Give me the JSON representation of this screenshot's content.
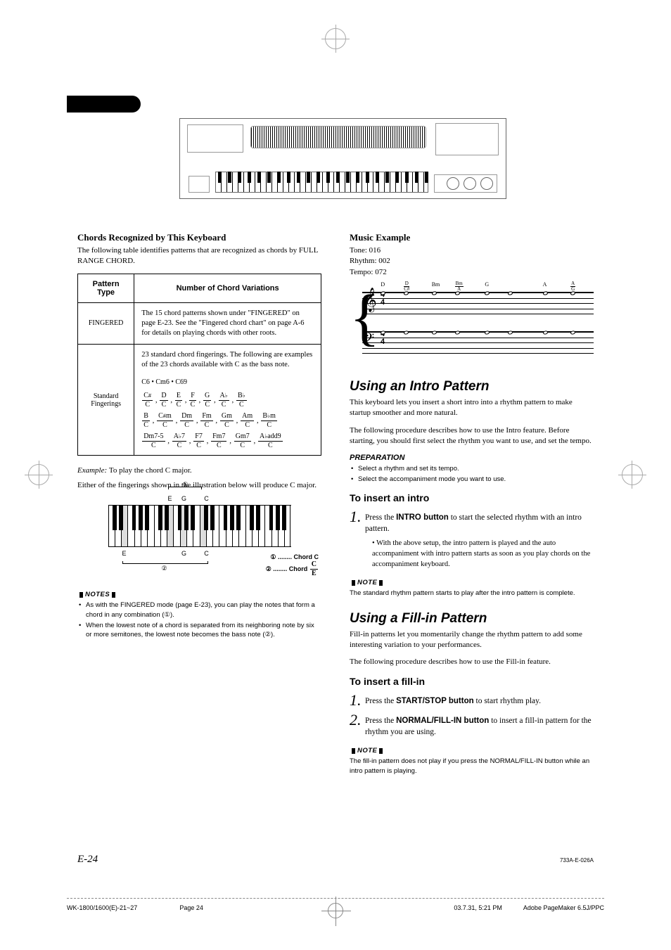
{
  "page": {
    "number": "E-24",
    "footer_code": "733A-E-026A",
    "meta_file": "WK-1800/1600(E)-21~27",
    "meta_page": "Page 24",
    "meta_date": "03.7.31, 5:21 PM",
    "meta_app": "Adobe PageMaker 6.5J/PPC"
  },
  "left": {
    "h_chords": "Chords Recognized by This Keyboard",
    "p_intro": "The following table identifies patterns that are recognized as chords by FULL RANGE CHORD.",
    "th_pattern": "Pattern Type",
    "th_variations": "Number of Chord Variations",
    "row1_pattern": "FINGERED",
    "row1_desc": "The 15 chord patterns shown under \"FINGERED\" on page E-23. See the \"Fingered chord chart\" on page A-6 for details on playing chords with other roots.",
    "row2_pattern": "Standard Fingerings",
    "row2_desc_top": "23 standard chord fingerings. The following are examples of the 23 chords available with C as the bass note.",
    "row2_line_c": "C6 • Cm6 • C69",
    "fr": {
      "r1": [
        {
          "n": "C#",
          "d": "C"
        },
        {
          "n": "D",
          "d": "C"
        },
        {
          "n": "E",
          "d": "C"
        },
        {
          "n": "F",
          "d": "C"
        },
        {
          "n": "G",
          "d": "C"
        },
        {
          "n": "A♭",
          "d": "C"
        },
        {
          "n": "B♭",
          "d": "C"
        }
      ],
      "r2": [
        {
          "n": "B",
          "d": "C"
        },
        {
          "n": "C#m",
          "d": "C"
        },
        {
          "n": "Dm",
          "d": "C"
        },
        {
          "n": "Fm",
          "d": "C"
        },
        {
          "n": "Gm",
          "d": "C"
        },
        {
          "n": "Am",
          "d": "C"
        },
        {
          "n": "B♭m",
          "d": "C"
        }
      ],
      "r3": [
        {
          "n": "Dm7-5",
          "d": "C"
        },
        {
          "n": "A♭7",
          "d": "C"
        },
        {
          "n": "F7",
          "d": "C"
        },
        {
          "n": "Fm7",
          "d": "C"
        },
        {
          "n": "Gm7",
          "d": "C"
        },
        {
          "n": "A♭add9",
          "d": "C"
        }
      ]
    },
    "example_line": "Example: To play the chord C major.",
    "either_line": "Either of the fingerings shown in the illustration below will produce C major.",
    "key_labels_top": [
      "E",
      "G",
      "C"
    ],
    "key_labels_bot": [
      "E",
      "G",
      "C"
    ],
    "legend1": "① ........ Chord C",
    "legend2_pre": "② ........ Chord ",
    "legend2_frac_n": "C",
    "legend2_frac_d": "E",
    "notes_hdr": "NOTES",
    "note1": "As with the FINGERED mode (page E-23), you can play the notes that form a chord in any combination (①).",
    "note2": "When the lowest note of a chord is separated from its neighboring note by six or more semitones, the lowest note becomes the bass note (②)."
  },
  "right": {
    "h_music": "Music Example",
    "tone": "Tone: 016",
    "rhythm": "Rhythm: 002",
    "tempo": "Tempo: 072",
    "chords": [
      "D",
      "D/C#",
      "Bm",
      "Bm/A",
      "G",
      "",
      "A",
      "A/G"
    ],
    "h_intro": "Using an Intro Pattern",
    "p_intro1": "This keyboard lets you insert a short intro into a rhythm pattern to make startup smoother and more natural.",
    "p_intro2": "The following procedure describes how to use the Intro feature. Before starting, you should first select the rhythm you want to use, and set the tempo.",
    "prep_hdr": "PREPARATION",
    "prep1": "Select a rhythm and set its tempo.",
    "prep2": "Select the accompaniment mode you want to use.",
    "h_toinsert": "To insert an intro",
    "step1_a": "Press the ",
    "step1_b": "INTRO button",
    "step1_c": " to start the selected rhythm with an intro pattern.",
    "step1_sub": "With the above setup, the intro pattern is played and the auto accompaniment with intro pattern starts as soon as you play chords on the accompaniment keyboard.",
    "note_hdr": "NOTE",
    "note_intro": "The standard rhythm pattern starts to play after the intro pattern is complete.",
    "h_fillin": "Using a Fill-in Pattern",
    "p_fill1": "Fill-in patterns let you momentarily change the rhythm pattern to add some interesting variation to your performances.",
    "p_fill2": "The following procedure describes how to use the Fill-in feature.",
    "h_toinsertfill": "To insert a fill-in",
    "fstep1_a": "Press the ",
    "fstep1_b": "START/STOP button",
    "fstep1_c": " to start rhythm play.",
    "fstep2_a": "Press the ",
    "fstep2_b": "NORMAL/FILL-IN button",
    "fstep2_c": " to insert a fill-in pattern for the rhythm you are using.",
    "note_fill": "The fill-in pattern does not play if you press the NORMAL/FILL-IN button while an intro pattern is playing."
  },
  "colors": {
    "text": "#000000",
    "bg": "#ffffff",
    "rule": "#888888",
    "key_hl": "#dddddd"
  }
}
